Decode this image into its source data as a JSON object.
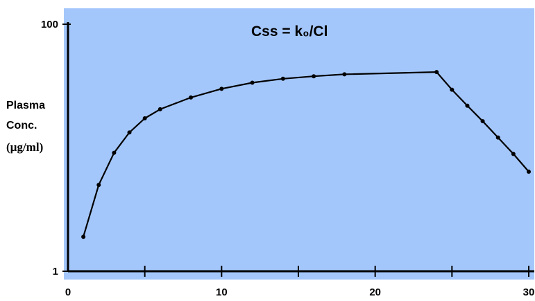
{
  "chart_data": {
    "type": "line",
    "title": "",
    "annotation": "Css = k₀/Cl",
    "ylabel_lines": [
      "Plasma",
      "Conc.",
      "(µg/ml)"
    ],
    "xlabel": "",
    "xlim": [
      0,
      30
    ],
    "ylim": [
      1,
      100
    ],
    "yscale": "log",
    "x_ticks": [
      0,
      5,
      10,
      15,
      20,
      25,
      30
    ],
    "x_tick_labels": [
      "0",
      "10",
      "20",
      "30"
    ],
    "x_tick_label_values": [
      0,
      10,
      20,
      30
    ],
    "y_tick_labels": [
      "1",
      "100"
    ],
    "y_tick_label_values": [
      1,
      100
    ],
    "grid": false,
    "series": [
      {
        "x": [
          1,
          2,
          3,
          4,
          5,
          6,
          8,
          10,
          12,
          14,
          16,
          18,
          24,
          25,
          26,
          27,
          28,
          29,
          30
        ],
        "y": [
          1.9,
          5.0,
          9.1,
          13.3,
          17.3,
          20.5,
          25.5,
          30.0,
          33.6,
          36.2,
          37.9,
          39.3,
          41.0,
          29.5,
          21.9,
          16.4,
          12.1,
          8.9,
          6.4
        ]
      }
    ],
    "colors": {
      "plot_background": "#a4c7fb",
      "line": "#000000"
    }
  }
}
